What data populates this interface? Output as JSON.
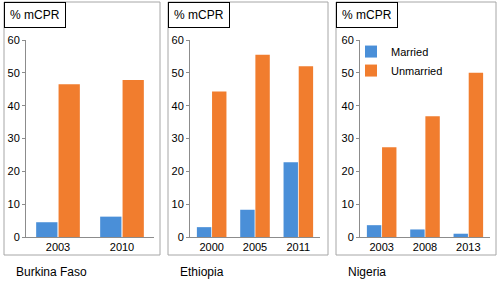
{
  "chart_data": [
    {
      "type": "bar",
      "xlabel": "Burkina Faso",
      "ylabel": "% mCPR",
      "categories": [
        "2003",
        "2010"
      ],
      "series": [
        {
          "name": "Married",
          "color": "#4a8fd8",
          "values": [
            4.5,
            6.2
          ]
        },
        {
          "name": "Unmarried",
          "color": "#f17d2e",
          "values": [
            46.5,
            47.8
          ]
        }
      ],
      "ylim": [
        0,
        60
      ],
      "yticks": [
        0,
        10,
        20,
        30,
        40,
        50,
        60
      ],
      "grid": false
    },
    {
      "type": "bar",
      "xlabel": "Ethiopia",
      "ylabel": "% mCPR",
      "categories": [
        "2000",
        "2005",
        "2011"
      ],
      "series": [
        {
          "name": "Married",
          "color": "#4a8fd8",
          "values": [
            3.0,
            8.3,
            22.8
          ]
        },
        {
          "name": "Unmarried",
          "color": "#f17d2e",
          "values": [
            44.3,
            55.5,
            52.0
          ]
        }
      ],
      "ylim": [
        0,
        60
      ],
      "yticks": [
        0,
        10,
        20,
        30,
        40,
        50,
        60
      ],
      "grid": false
    },
    {
      "type": "bar",
      "xlabel": "Nigeria",
      "ylabel": "% mCPR",
      "categories": [
        "2003",
        "2008",
        "2013"
      ],
      "series": [
        {
          "name": "Married",
          "color": "#4a8fd8",
          "values": [
            3.6,
            2.3,
            1.0
          ]
        },
        {
          "name": "Unmarried",
          "color": "#f17d2e",
          "values": [
            27.3,
            36.8,
            50.0
          ]
        }
      ],
      "ylim": [
        0,
        60
      ],
      "yticks": [
        0,
        10,
        20,
        30,
        40,
        50,
        60
      ],
      "grid": false,
      "legend": "upper right"
    }
  ]
}
